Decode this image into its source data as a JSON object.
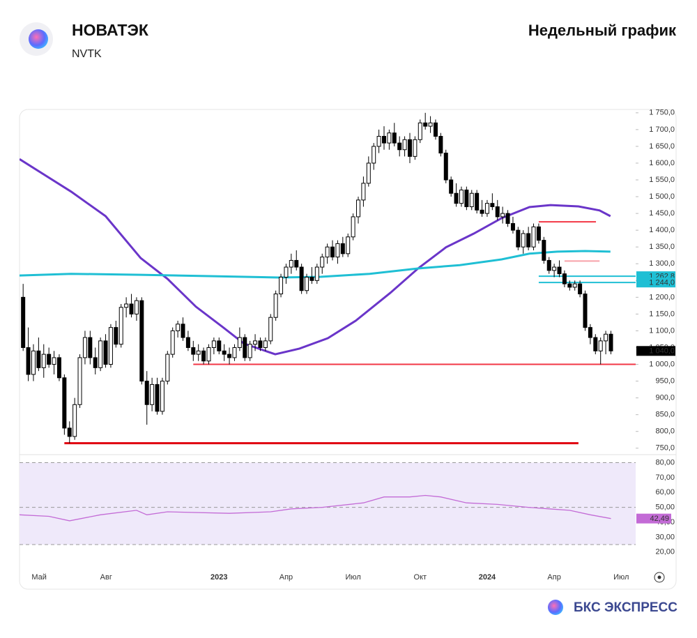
{
  "header": {
    "title": "НОВАТЭК",
    "ticker": "NVTK",
    "chart_name": "Недельный график"
  },
  "footer": {
    "brand": "БКС ЭКСПРЕСС"
  },
  "chart_data": {
    "type": "candlestick",
    "xlim": [
      -0.7,
      118.8
    ],
    "xticks": [
      {
        "value": 3.1,
        "label": "Май"
      },
      {
        "value": 16.1,
        "label": "Авг"
      },
      {
        "value": 38,
        "label": "2023"
      },
      {
        "value": 51,
        "label": "Апр"
      },
      {
        "value": 64,
        "label": "Июл"
      },
      {
        "value": 77,
        "label": "Окт"
      },
      {
        "value": 90,
        "label": "2024"
      },
      {
        "value": 103,
        "label": "Апр"
      },
      {
        "value": 116,
        "label": "Июл"
      }
    ],
    "ylim": [
      735,
      1760
    ],
    "yticks": [
      {
        "value": 750,
        "label": "750,0"
      },
      {
        "value": 800,
        "label": "800,0"
      },
      {
        "value": 850,
        "label": "850,0"
      },
      {
        "value": 900,
        "label": "900,0"
      },
      {
        "value": 950,
        "label": "950,0"
      },
      {
        "value": 1000,
        "label": "1 000,0"
      },
      {
        "value": 1050,
        "label": "1 050,0"
      },
      {
        "value": 1100,
        "label": "1 100,0"
      },
      {
        "value": 1150,
        "label": "1 150,0"
      },
      {
        "value": 1200,
        "label": "1 200,0"
      },
      {
        "value": 1250,
        "label": "1 250,0"
      },
      {
        "value": 1300,
        "label": "1 300,0"
      },
      {
        "value": 1350,
        "label": "1 350,0"
      },
      {
        "value": 1400,
        "label": "1 400,0"
      },
      {
        "value": 1450,
        "label": "1 450,0"
      },
      {
        "value": 1500,
        "label": "1 500,0"
      },
      {
        "value": 1550,
        "label": "1 550,0"
      },
      {
        "value": 1600,
        "label": "1 600,0"
      },
      {
        "value": 1650,
        "label": "1 650,0"
      },
      {
        "value": 1700,
        "label": "1 700,0"
      },
      {
        "value": 1750,
        "label": "1 750,0"
      }
    ],
    "up_color": "#ffffff",
    "down_color": "#000000",
    "open": [
      1200,
      1050,
      970,
      1040,
      990,
      1030,
      1000,
      1020,
      960,
      810,
      785,
      880,
      1020,
      1080,
      1020,
      990,
      1070,
      1000,
      1110,
      1060,
      1170,
      1180,
      1150,
      1190,
      950,
      880,
      940,
      860,
      950,
      1030,
      1100,
      1120,
      1080,
      1050,
      1030,
      1040,
      1010,
      1050,
      1070,
      1040,
      1030,
      1020,
      1050,
      1080,
      1020,
      1060,
      1070,
      1050,
      1070,
      1140,
      1210,
      1260,
      1290,
      1310,
      1290,
      1220,
      1260,
      1250,
      1290,
      1320,
      1350,
      1320,
      1360,
      1330,
      1380,
      1440,
      1490,
      1540,
      1600,
      1650,
      1680,
      1660,
      1690,
      1660,
      1640,
      1670,
      1620,
      1670,
      1720,
      1710,
      1720,
      1680,
      1630,
      1550,
      1510,
      1480,
      1520,
      1470,
      1510,
      1460,
      1450,
      1480,
      1470,
      1440,
      1450,
      1420,
      1400,
      1350,
      1390,
      1350,
      1410,
      1370,
      1310,
      1280,
      1290,
      1270,
      1240,
      1230,
      1240,
      1210,
      1110,
      1080,
      1040,
      1070,
      1090
    ],
    "high": [
      1240,
      1110,
      1060,
      1080,
      1060,
      1050,
      1040,
      1030,
      970,
      830,
      900,
      1030,
      1100,
      1100,
      1050,
      1080,
      1090,
      1120,
      1130,
      1180,
      1200,
      1210,
      1200,
      1200,
      980,
      960,
      960,
      960,
      1040,
      1110,
      1130,
      1140,
      1100,
      1070,
      1060,
      1050,
      1060,
      1080,
      1080,
      1060,
      1050,
      1060,
      1110,
      1090,
      1070,
      1090,
      1080,
      1080,
      1150,
      1220,
      1270,
      1300,
      1330,
      1340,
      1300,
      1270,
      1290,
      1300,
      1330,
      1360,
      1370,
      1370,
      1380,
      1390,
      1450,
      1500,
      1560,
      1620,
      1660,
      1700,
      1710,
      1700,
      1720,
      1680,
      1680,
      1690,
      1680,
      1730,
      1750,
      1740,
      1730,
      1690,
      1640,
      1560,
      1540,
      1530,
      1530,
      1520,
      1520,
      1490,
      1490,
      1510,
      1490,
      1470,
      1460,
      1440,
      1410,
      1400,
      1410,
      1420,
      1420,
      1380,
      1320,
      1300,
      1310,
      1280,
      1250,
      1250,
      1250,
      1220,
      1120,
      1090,
      1080,
      1100,
      1100
    ],
    "low": [
      1040,
      950,
      950,
      980,
      960,
      990,
      970,
      950,
      790,
      765,
      775,
      870,
      1000,
      1000,
      970,
      980,
      990,
      990,
      1050,
      1050,
      1140,
      1140,
      1130,
      940,
      820,
      860,
      850,
      850,
      940,
      1020,
      1080,
      1070,
      1040,
      1010,
      1010,
      1000,
      1000,
      1030,
      1030,
      1010,
      1000,
      1010,
      1040,
      1010,
      1010,
      1040,
      1040,
      1040,
      1060,
      1130,
      1200,
      1240,
      1270,
      1280,
      1210,
      1210,
      1240,
      1240,
      1270,
      1300,
      1310,
      1300,
      1320,
      1320,
      1370,
      1420,
      1470,
      1530,
      1580,
      1630,
      1640,
      1640,
      1650,
      1620,
      1620,
      1600,
      1610,
      1660,
      1700,
      1690,
      1670,
      1620,
      1540,
      1500,
      1470,
      1470,
      1460,
      1460,
      1450,
      1440,
      1440,
      1460,
      1430,
      1420,
      1410,
      1390,
      1340,
      1330,
      1340,
      1340,
      1360,
      1300,
      1270,
      1260,
      1260,
      1230,
      1220,
      1220,
      1200,
      1100,
      1060,
      1030,
      1000,
      1030,
      1030
    ],
    "close": [
      1050,
      970,
      1040,
      990,
      1030,
      1000,
      1020,
      960,
      810,
      785,
      880,
      1020,
      1080,
      1020,
      990,
      1070,
      1000,
      1110,
      1060,
      1170,
      1180,
      1150,
      1190,
      950,
      880,
      940,
      860,
      950,
      1030,
      1100,
      1120,
      1080,
      1050,
      1030,
      1040,
      1010,
      1050,
      1070,
      1040,
      1030,
      1020,
      1050,
      1080,
      1020,
      1060,
      1070,
      1050,
      1070,
      1140,
      1210,
      1260,
      1290,
      1310,
      1290,
      1220,
      1260,
      1250,
      1290,
      1320,
      1350,
      1320,
      1360,
      1330,
      1380,
      1440,
      1490,
      1540,
      1600,
      1650,
      1680,
      1660,
      1690,
      1660,
      1640,
      1670,
      1620,
      1670,
      1720,
      1710,
      1720,
      1680,
      1630,
      1550,
      1510,
      1480,
      1520,
      1470,
      1510,
      1460,
      1450,
      1480,
      1470,
      1440,
      1450,
      1420,
      1400,
      1350,
      1390,
      1350,
      1410,
      1370,
      1310,
      1280,
      1290,
      1270,
      1240,
      1230,
      1240,
      1210,
      1110,
      1080,
      1040,
      1070,
      1090,
      1040
    ],
    "lines": [
      {
        "color": "#6a35c9",
        "x": [
          -0.7,
          9.3,
          16,
          22.8,
          28,
          33.5,
          38.8,
          42.8,
          48.9,
          53.6,
          59.1,
          64.5,
          71.2,
          76.6,
          82,
          87.4,
          92.8,
          98.2,
          102.3,
          107.7,
          111.8,
          113.9
        ],
        "values": [
          1612,
          1515,
          1442,
          1317,
          1255,
          1172,
          1110,
          1062,
          1030,
          1047,
          1078,
          1130,
          1213,
          1286,
          1349,
          1390,
          1436,
          1469,
          1475,
          1471,
          1459,
          1442
        ]
      },
      {
        "color": "#1fbfd4",
        "x": [
          -0.7,
          9.3,
          22.8,
          36.1,
          49.6,
          57.7,
          67.2,
          76.6,
          84.7,
          92.8,
          98.2,
          103.6,
          109,
          113.9
        ],
        "values": [
          1265,
          1270,
          1267,
          1263,
          1259,
          1261,
          1270,
          1286,
          1296,
          1313,
          1330,
          1336,
          1338,
          1336
        ]
      }
    ],
    "levels": [
      {
        "value": 1000,
        "from": 33,
        "to": 118.8,
        "color": "#f23645"
      },
      {
        "value": 765,
        "from": 8,
        "to": 107.7,
        "color": "#e0000f"
      },
      {
        "value": 1425,
        "from": 100,
        "to": 111.1,
        "color": "#f23645"
      },
      {
        "value": 1308,
        "from": 105,
        "to": 111.8,
        "color": "#f7a1a8"
      },
      {
        "value": 1262.8,
        "from": 100,
        "to": 118.8,
        "color": "#1fbfd4"
      },
      {
        "value": 1244,
        "from": 100,
        "to": 118.8,
        "color": "#1fbfd4"
      }
    ],
    "price_labels": [
      {
        "value": 1262.8,
        "label": "1 262,8",
        "color": "#1fbfd4"
      },
      {
        "value": 1244,
        "label": "1 244,0",
        "color": "#1fbfd4"
      },
      {
        "value": 1040,
        "label": "1 040,0",
        "color": "#000000"
      }
    ],
    "rsi": {
      "ylim": [
        18,
        84
      ],
      "band": [
        25,
        80
      ],
      "dashed": [
        80,
        50,
        25
      ],
      "color": "#c36bd6",
      "yticks": [
        {
          "value": 20,
          "label": "20,00"
        },
        {
          "value": 30,
          "label": "30,00"
        },
        {
          "value": 40,
          "label": "40,00"
        },
        {
          "value": 50,
          "label": "50,00"
        },
        {
          "value": 60,
          "label": "60,00"
        },
        {
          "value": 70,
          "label": "70,00"
        },
        {
          "value": 80,
          "label": "80,00"
        }
      ],
      "x": [
        -0.7,
        5,
        9,
        15,
        22,
        24,
        28,
        40,
        48,
        52,
        58,
        66,
        70,
        75,
        78,
        81,
        86,
        92,
        98,
        102,
        106,
        110,
        114
      ],
      "values": [
        45,
        44,
        41,
        45,
        48,
        45,
        47,
        46,
        47,
        49,
        50,
        53,
        57,
        57,
        58,
        57,
        53,
        52,
        50,
        49,
        48,
        45,
        42.49
      ],
      "last_label": "42,49"
    }
  }
}
